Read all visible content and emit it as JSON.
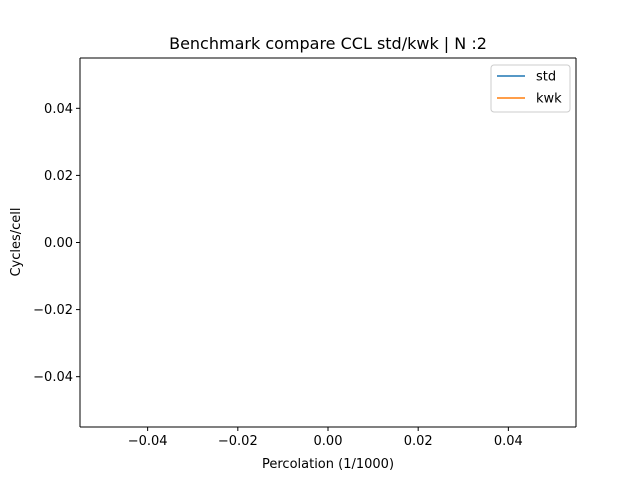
{
  "chart_data": {
    "type": "line",
    "title": "Benchmark compare CCL std/kwk | N :2",
    "xlabel": "Percolation (1/1000)",
    "ylabel": "Cycles/cell",
    "xlim": [
      -0.055,
      0.055
    ],
    "ylim": [
      -0.055,
      0.055
    ],
    "x_ticks": [
      -0.04,
      -0.02,
      0.0,
      0.02,
      0.04
    ],
    "x_tick_labels": [
      "−0.04",
      "−0.02",
      "0.00",
      "0.02",
      "0.04"
    ],
    "y_ticks": [
      -0.04,
      -0.02,
      0.0,
      0.02,
      0.04
    ],
    "y_tick_labels": [
      "−0.04",
      "−0.02",
      "0.00",
      "0.02",
      "0.04"
    ],
    "grid": false,
    "legend_position": "top-right",
    "series": [
      {
        "name": "std",
        "color": "#1f77b4",
        "x": [],
        "y": []
      },
      {
        "name": "kwk",
        "color": "#ff7f0e",
        "x": [],
        "y": []
      }
    ]
  }
}
